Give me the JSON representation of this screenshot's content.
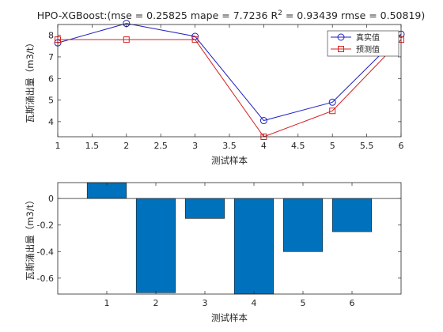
{
  "chart_data": [
    {
      "type": "line",
      "title_main": "HPO-XGBoost:(mse = 0.25825 mape = 7.7236  R",
      "title_sup": "2",
      "title_tail": " = 0.93439 rmse = 0.50819)",
      "xlabel": "测试样本",
      "ylabel": "瓦斯涌出量（m3/t）",
      "xlim": [
        1,
        6
      ],
      "ylim": [
        3.3,
        8.5
      ],
      "x_ticks": [
        "1",
        "1.5",
        "2",
        "2.5",
        "3",
        "3.5",
        "4",
        "4.5",
        "5",
        "5.5",
        "6"
      ],
      "y_ticks": [
        "4",
        "5",
        "6",
        "7",
        "8"
      ],
      "x": [
        1,
        2,
        3,
        4,
        5,
        6
      ],
      "series": [
        {
          "name": "真实值",
          "values": [
            7.65,
            8.55,
            7.95,
            4.05,
            4.9,
            8.05
          ],
          "color": "#1f1fbf",
          "marker": "circle"
        },
        {
          "name": "预测值",
          "values": [
            7.8,
            7.8,
            7.8,
            3.3,
            4.5,
            7.8
          ],
          "color": "#d42020",
          "marker": "square"
        }
      ],
      "legend_position": "top-right",
      "grid": false
    },
    {
      "type": "bar",
      "xlabel": "测试样本",
      "ylabel": "瓦斯涌出量（m3/t）",
      "categories": [
        "1",
        "2",
        "3",
        "4",
        "5",
        "6"
      ],
      "values": [
        0.12,
        -0.71,
        -0.15,
        -0.72,
        -0.4,
        -0.25
      ],
      "ylim": [
        -0.72,
        0.12
      ],
      "y_ticks": [
        "0",
        "-0.2",
        "-0.4",
        "-0.6"
      ],
      "bar_color": "#0072bd",
      "grid": false
    }
  ]
}
